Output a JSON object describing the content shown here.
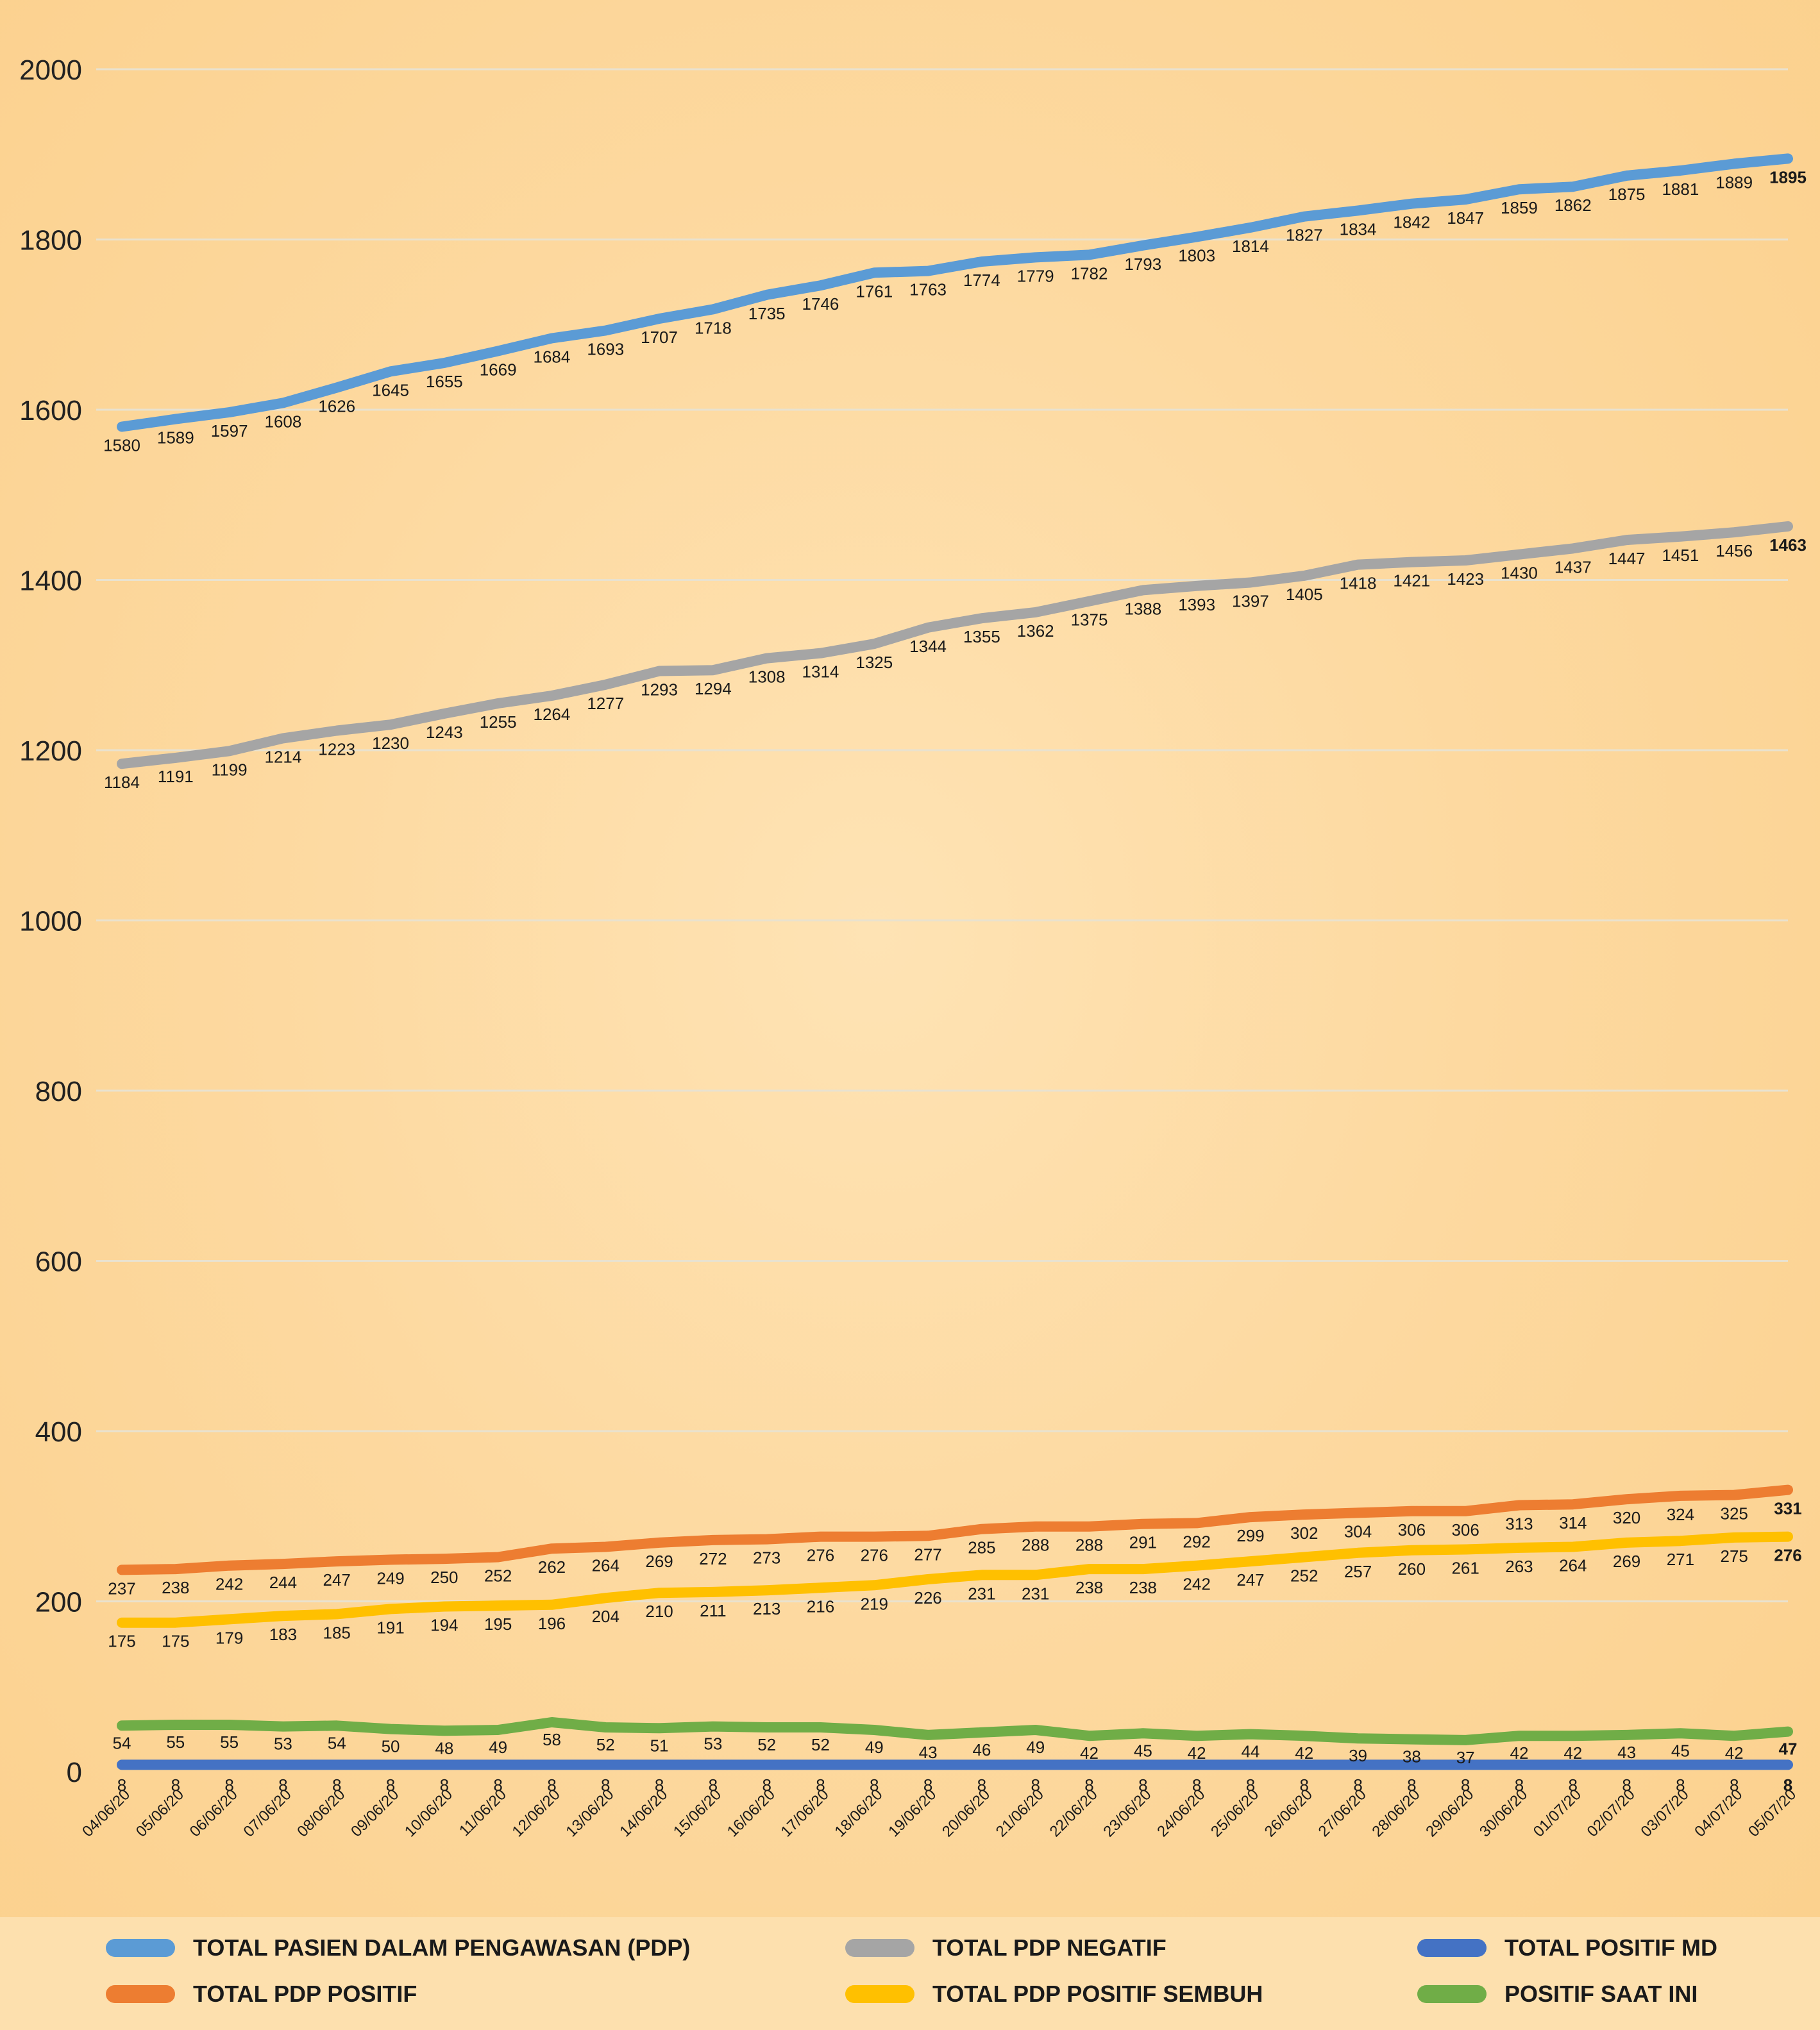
{
  "chart_data": {
    "type": "line",
    "title": "",
    "xlabel": "",
    "ylabel": "",
    "ylim": [
      0,
      2000
    ],
    "yticks": [
      0,
      200,
      400,
      600,
      800,
      1000,
      1200,
      1400,
      1600,
      1800,
      2000
    ],
    "grid": true,
    "legend_position": "bottom",
    "categories": [
      "04/06/20",
      "05/06/20",
      "06/06/20",
      "07/06/20",
      "08/06/20",
      "09/06/20",
      "10/06/20",
      "11/06/20",
      "12/06/20",
      "13/06/20",
      "14/06/20",
      "15/06/20",
      "16/06/20",
      "17/06/20",
      "18/06/20",
      "19/06/20",
      "20/06/20",
      "21/06/20",
      "22/06/20",
      "23/06/20",
      "24/06/20",
      "25/06/20",
      "26/06/20",
      "27/06/20",
      "28/06/20",
      "29/06/20",
      "30/06/20",
      "01/07/20",
      "02/07/20",
      "03/07/20",
      "04/07/20",
      "05/07/20"
    ],
    "series": [
      {
        "name": "TOTAL PASIEN DALAM PENGAWASAN (PDP)",
        "color": "#5b9bd5",
        "values": [
          1580,
          1589,
          1597,
          1608,
          1626,
          1645,
          1655,
          1669,
          1684,
          1693,
          1707,
          1718,
          1735,
          1746,
          1761,
          1763,
          1774,
          1779,
          1782,
          1793,
          1803,
          1814,
          1827,
          1834,
          1842,
          1847,
          1859,
          1862,
          1875,
          1881,
          1889,
          1895
        ]
      },
      {
        "name": "TOTAL PDP NEGATIF",
        "color": "#a5a5a5",
        "values": [
          1184,
          1191,
          1199,
          1214,
          1223,
          1230,
          1243,
          1255,
          1264,
          1277,
          1293,
          1294,
          1308,
          1314,
          1325,
          1344,
          1355,
          1362,
          1375,
          1388,
          1393,
          1397,
          1405,
          1418,
          1421,
          1423,
          1430,
          1437,
          1447,
          1451,
          1456,
          1463
        ]
      },
      {
        "name": "TOTAL POSITIF MD",
        "color": "#4472c4",
        "values": [
          8,
          8,
          8,
          8,
          8,
          8,
          8,
          8,
          8,
          8,
          8,
          8,
          8,
          8,
          8,
          8,
          8,
          8,
          8,
          8,
          8,
          8,
          8,
          8,
          8,
          8,
          8,
          8,
          8,
          8,
          8,
          8
        ]
      },
      {
        "name": "TOTAL PDP POSITIF",
        "color": "#ed7d31",
        "values": [
          237,
          238,
          242,
          244,
          247,
          249,
          250,
          252,
          262,
          264,
          269,
          272,
          273,
          276,
          276,
          277,
          285,
          288,
          288,
          291,
          292,
          299,
          302,
          304,
          306,
          306,
          313,
          314,
          320,
          324,
          325,
          331
        ]
      },
      {
        "name": "TOTAL PDP POSITIF SEMBUH",
        "color": "#ffc000",
        "values": [
          175,
          175,
          179,
          183,
          185,
          191,
          194,
          195,
          196,
          204,
          210,
          211,
          213,
          216,
          219,
          226,
          231,
          231,
          238,
          238,
          242,
          247,
          252,
          257,
          260,
          261,
          263,
          264,
          269,
          271,
          275,
          276
        ]
      },
      {
        "name": "POSITIF SAAT INI",
        "color": "#70ad47",
        "values": [
          54,
          55,
          55,
          53,
          54,
          50,
          48,
          49,
          58,
          52,
          51,
          53,
          52,
          52,
          49,
          43,
          46,
          49,
          42,
          45,
          42,
          44,
          42,
          39,
          38,
          37,
          42,
          42,
          43,
          45,
          42,
          47
        ]
      }
    ]
  }
}
